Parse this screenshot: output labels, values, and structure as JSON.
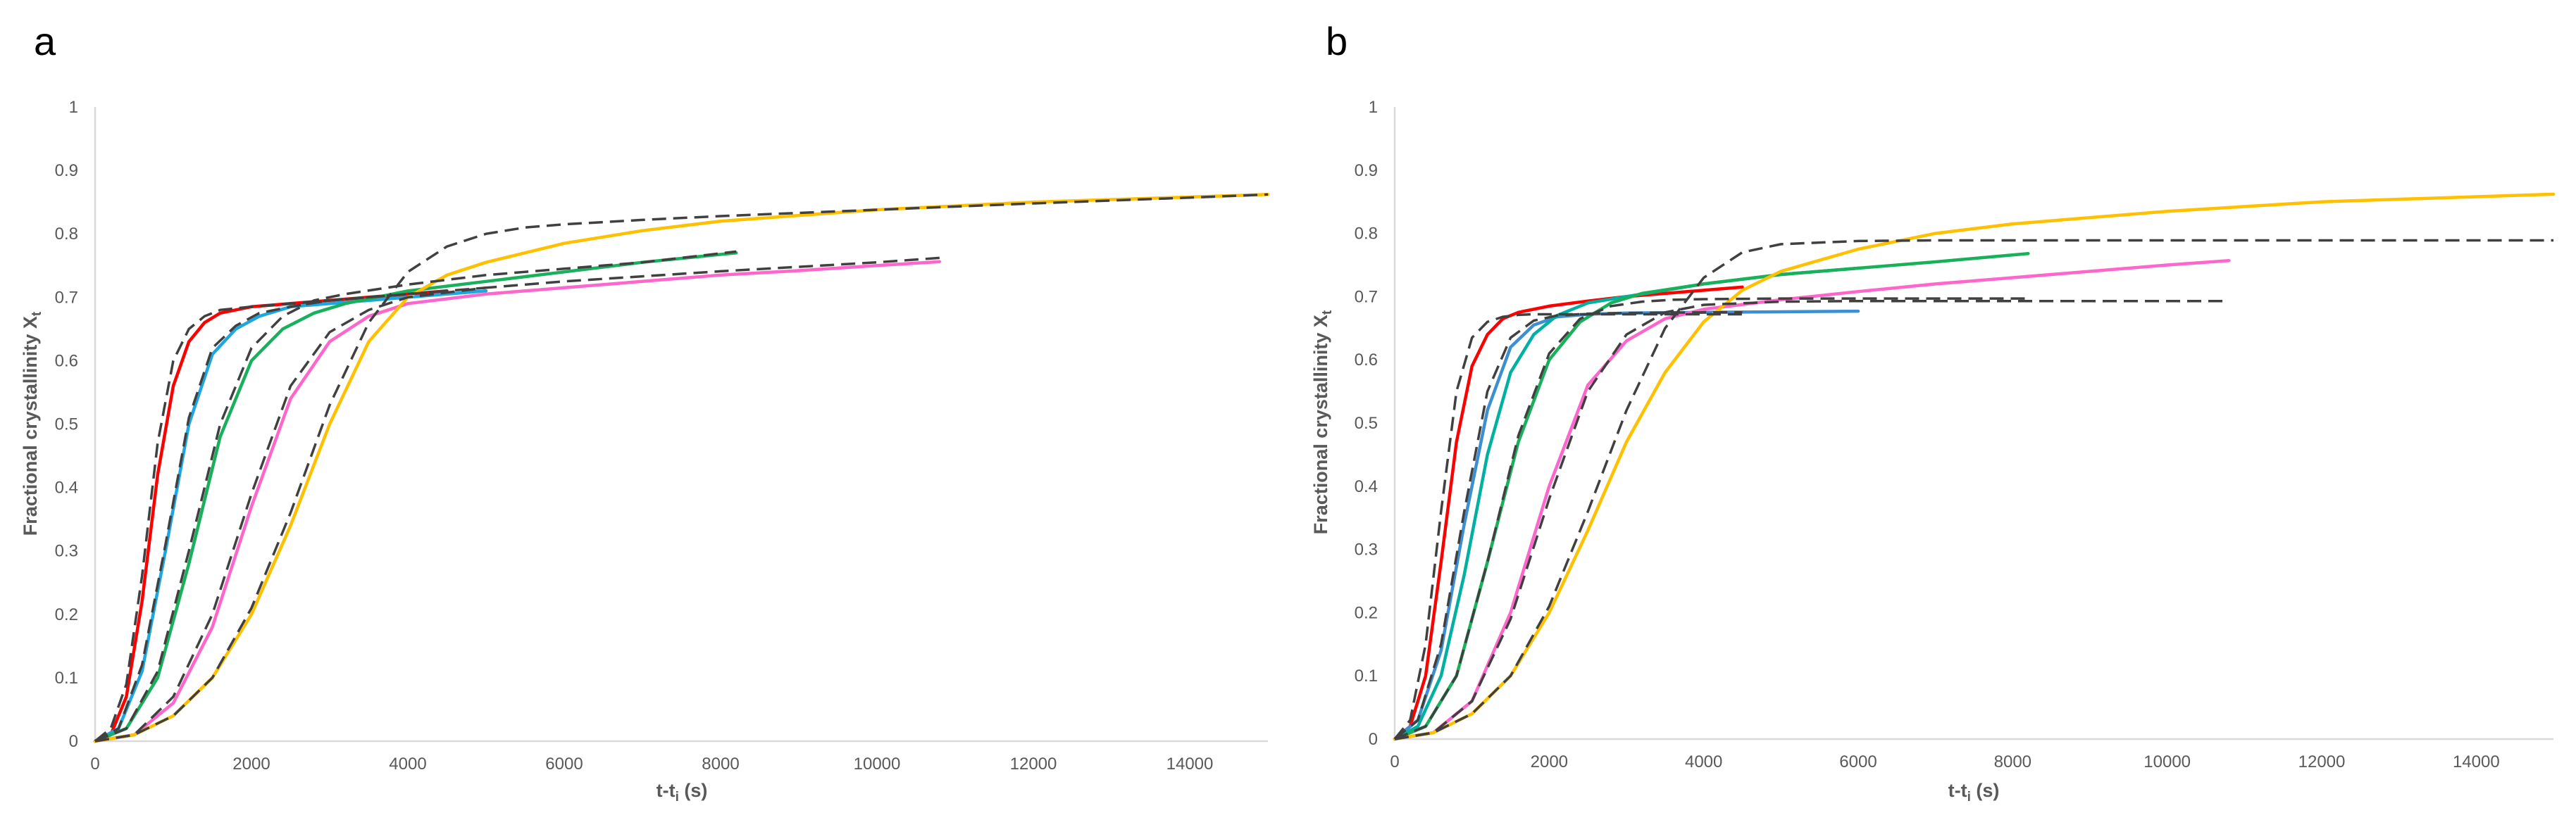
{
  "chart_data": [
    {
      "panel": "a",
      "type": "line",
      "xlabel_main": "t-t",
      "xlabel_sub": "i",
      "xlabel_unit": " (s)",
      "ylabel_main": "Fractional crystallinity X",
      "ylabel_sub": "t",
      "xlim": [
        0,
        15000
      ],
      "ylim": [
        0,
        1
      ],
      "xticks": [
        0,
        2000,
        4000,
        6000,
        8000,
        10000,
        12000,
        14000
      ],
      "yticks": [
        0,
        0.1,
        0.2,
        0.3,
        0.4,
        0.5,
        0.6,
        0.7,
        0.8,
        0.9,
        1
      ],
      "ytick_labels": [
        "0",
        "0.1",
        "0.2",
        "0.3",
        "0.4",
        "0.5",
        "0.6",
        "0.7",
        "0.8",
        "0.9",
        "1"
      ],
      "series": [
        {
          "name": "red",
          "color": "#ff0000",
          "x": [
            0,
            200,
            400,
            600,
            800,
            1000,
            1200,
            1400,
            1600,
            2000,
            2500,
            3000,
            3500,
            4000,
            4500
          ],
          "y": [
            0,
            0.01,
            0.07,
            0.22,
            0.42,
            0.56,
            0.63,
            0.66,
            0.675,
            0.685,
            0.69,
            0.695,
            0.7,
            0.705,
            0.71
          ]
        },
        {
          "name": "blue",
          "color": "#1ca7e0",
          "x": [
            0,
            300,
            600,
            900,
            1200,
            1500,
            1800,
            2100,
            2500,
            3000,
            4000,
            5000
          ],
          "y": [
            0,
            0.02,
            0.11,
            0.3,
            0.5,
            0.61,
            0.65,
            0.67,
            0.685,
            0.69,
            0.7,
            0.71
          ]
        },
        {
          "name": "green",
          "color": "#18b05a",
          "x": [
            0,
            400,
            800,
            1200,
            1600,
            2000,
            2400,
            2800,
            3200,
            4000,
            5000,
            6000,
            7000,
            8200
          ],
          "y": [
            0,
            0.02,
            0.1,
            0.28,
            0.48,
            0.6,
            0.65,
            0.675,
            0.69,
            0.71,
            0.725,
            0.74,
            0.755,
            0.77
          ]
        },
        {
          "name": "pink",
          "color": "#ff66cc",
          "x": [
            0,
            500,
            1000,
            1500,
            2000,
            2500,
            3000,
            3500,
            4000,
            5000,
            6000,
            7000,
            8000,
            9000,
            10000,
            10800
          ],
          "y": [
            0,
            0.01,
            0.06,
            0.18,
            0.37,
            0.54,
            0.63,
            0.67,
            0.69,
            0.705,
            0.715,
            0.725,
            0.735,
            0.742,
            0.75,
            0.756
          ]
        },
        {
          "name": "gold",
          "color": "#ffc000",
          "x": [
            0,
            500,
            1000,
            1500,
            2000,
            2500,
            3000,
            3500,
            4000,
            4500,
            5000,
            6000,
            7000,
            8000,
            10000,
            12000,
            14000,
            15000
          ],
          "y": [
            0,
            0.01,
            0.04,
            0.1,
            0.2,
            0.34,
            0.5,
            0.63,
            0.7,
            0.735,
            0.755,
            0.785,
            0.805,
            0.82,
            0.838,
            0.85,
            0.858,
            0.862
          ]
        }
      ],
      "fits": [
        {
          "name": "red-fit",
          "x": [
            0,
            200,
            400,
            600,
            800,
            1000,
            1200,
            1400,
            1600,
            2000,
            3000,
            4000,
            4500
          ],
          "y": [
            0,
            0.02,
            0.09,
            0.26,
            0.47,
            0.6,
            0.65,
            0.67,
            0.68,
            0.685,
            0.695,
            0.705,
            0.71
          ]
        },
        {
          "name": "blue-fit",
          "x": [
            0,
            300,
            600,
            900,
            1200,
            1500,
            1800,
            2100,
            2500,
            3000,
            4000,
            5000
          ],
          "y": [
            0,
            0.02,
            0.12,
            0.31,
            0.51,
            0.62,
            0.655,
            0.675,
            0.685,
            0.695,
            0.705,
            0.715
          ]
        },
        {
          "name": "green-fit",
          "x": [
            0,
            400,
            800,
            1200,
            1600,
            2000,
            2400,
            2800,
            3200,
            4000,
            5000,
            6000,
            7000,
            8200
          ],
          "y": [
            0,
            0.02,
            0.11,
            0.3,
            0.5,
            0.62,
            0.67,
            0.695,
            0.705,
            0.72,
            0.735,
            0.745,
            0.755,
            0.772
          ]
        },
        {
          "name": "pink-fit",
          "x": [
            0,
            500,
            1000,
            1500,
            2000,
            2500,
            3000,
            3500,
            4000,
            5000,
            6000,
            7000,
            8000,
            9000,
            10000,
            10800
          ],
          "y": [
            0,
            0.01,
            0.07,
            0.2,
            0.39,
            0.56,
            0.645,
            0.68,
            0.7,
            0.715,
            0.725,
            0.733,
            0.741,
            0.748,
            0.755,
            0.762
          ]
        },
        {
          "name": "gold-fit",
          "x": [
            0,
            500,
            1000,
            1500,
            2000,
            2500,
            3000,
            3500,
            4000,
            4500,
            5000,
            5500,
            6000,
            7000,
            8000,
            10000,
            12000,
            14000,
            15000
          ],
          "y": [
            0,
            0.01,
            0.04,
            0.1,
            0.21,
            0.36,
            0.53,
            0.66,
            0.74,
            0.78,
            0.8,
            0.81,
            0.815,
            0.822,
            0.828,
            0.838,
            0.848,
            0.857,
            0.862
          ]
        }
      ]
    },
    {
      "panel": "b",
      "type": "line",
      "xlabel_main": "t-t",
      "xlabel_sub": "i",
      "xlabel_unit": " (s)",
      "ylabel_main": "Fractional crystallinity X",
      "ylabel_sub": "t",
      "xlim": [
        0,
        15000
      ],
      "ylim": [
        0,
        1
      ],
      "xticks": [
        0,
        2000,
        4000,
        6000,
        8000,
        10000,
        12000,
        14000
      ],
      "yticks": [
        0,
        0.1,
        0.2,
        0.3,
        0.4,
        0.5,
        0.6,
        0.7,
        0.8,
        0.9,
        1
      ],
      "ytick_labels": [
        "0",
        "0.1",
        "0.2",
        "0.3",
        "0.4",
        "0.5",
        "0.6",
        "0.7",
        "0.8",
        "0.9",
        "1"
      ],
      "series": [
        {
          "name": "red",
          "color": "#ff0000",
          "x": [
            0,
            200,
            400,
            600,
            800,
            1000,
            1200,
            1400,
            1600,
            2000,
            2500,
            3000,
            3500,
            4000,
            4500
          ],
          "y": [
            0,
            0.02,
            0.1,
            0.28,
            0.47,
            0.59,
            0.64,
            0.665,
            0.675,
            0.685,
            0.693,
            0.7,
            0.705,
            0.71,
            0.715
          ]
        },
        {
          "name": "blue",
          "color": "#3d8fd1",
          "x": [
            0,
            300,
            600,
            900,
            1200,
            1500,
            1800,
            2100,
            2500,
            3000,
            4000,
            5000,
            6000
          ],
          "y": [
            0,
            0.03,
            0.14,
            0.34,
            0.52,
            0.62,
            0.655,
            0.668,
            0.672,
            0.674,
            0.675,
            0.676,
            0.677
          ]
        },
        {
          "name": "teal",
          "color": "#00b0a0",
          "x": [
            0,
            300,
            600,
            900,
            1200,
            1500,
            1800,
            2100,
            2500,
            3000,
            4000,
            5000,
            6000
          ],
          "y": [
            0,
            0.02,
            0.1,
            0.26,
            0.45,
            0.58,
            0.64,
            0.67,
            0.69,
            0.7,
            0.72,
            0.735,
            0.745
          ]
        },
        {
          "name": "green",
          "color": "#18b05a",
          "x": [
            0,
            400,
            800,
            1200,
            1600,
            2000,
            2400,
            2800,
            3200,
            4000,
            5000,
            6000,
            7000,
            8200
          ],
          "y": [
            0,
            0.02,
            0.1,
            0.28,
            0.47,
            0.6,
            0.66,
            0.69,
            0.705,
            0.72,
            0.735,
            0.745,
            0.755,
            0.768
          ]
        },
        {
          "name": "pink",
          "color": "#ff66cc",
          "x": [
            0,
            500,
            1000,
            1500,
            2000,
            2500,
            3000,
            3500,
            4000,
            5000,
            6000,
            7000,
            8000,
            9000,
            10000,
            10800
          ],
          "y": [
            0,
            0.01,
            0.06,
            0.2,
            0.4,
            0.56,
            0.63,
            0.665,
            0.68,
            0.695,
            0.708,
            0.72,
            0.73,
            0.74,
            0.75,
            0.757
          ]
        },
        {
          "name": "gold",
          "color": "#ffc000",
          "x": [
            0,
            500,
            1000,
            1500,
            2000,
            2500,
            3000,
            3500,
            4000,
            4500,
            5000,
            6000,
            7000,
            8000,
            10000,
            12000,
            14000,
            15000
          ],
          "y": [
            0,
            0.01,
            0.04,
            0.1,
            0.2,
            0.33,
            0.47,
            0.58,
            0.66,
            0.71,
            0.74,
            0.775,
            0.8,
            0.815,
            0.835,
            0.85,
            0.858,
            0.862
          ]
        }
      ],
      "fits": [
        {
          "name": "red-fit",
          "x": [
            0,
            200,
            400,
            600,
            800,
            1000,
            1200,
            1400,
            1600,
            1800,
            2000,
            3000,
            4000,
            4500
          ],
          "y": [
            0,
            0.03,
            0.15,
            0.36,
            0.55,
            0.635,
            0.66,
            0.668,
            0.671,
            0.672,
            0.672,
            0.672,
            0.672,
            0.672
          ]
        },
        {
          "name": "blue-fit",
          "x": [
            0,
            300,
            600,
            900,
            1200,
            1500,
            1800,
            2100,
            2500,
            3000,
            4000,
            4500
          ],
          "y": [
            0,
            0.03,
            0.15,
            0.36,
            0.55,
            0.635,
            0.662,
            0.67,
            0.673,
            0.674,
            0.675,
            0.675
          ]
        },
        {
          "name": "green-fit",
          "x": [
            0,
            400,
            800,
            1200,
            1600,
            2000,
            2400,
            2800,
            3200,
            3600,
            4000,
            5000,
            6000,
            7000,
            8200
          ],
          "y": [
            0,
            0.02,
            0.1,
            0.28,
            0.48,
            0.61,
            0.665,
            0.685,
            0.692,
            0.695,
            0.696,
            0.697,
            0.697,
            0.697,
            0.697
          ]
        },
        {
          "name": "pink-fit",
          "x": [
            0,
            500,
            1000,
            1500,
            2000,
            2500,
            3000,
            3500,
            4000,
            5000,
            6000,
            8000,
            10000,
            10800
          ],
          "y": [
            0,
            0.01,
            0.06,
            0.19,
            0.38,
            0.55,
            0.64,
            0.675,
            0.687,
            0.692,
            0.693,
            0.693,
            0.693,
            0.693
          ]
        },
        {
          "name": "gold-fit",
          "x": [
            0,
            500,
            1000,
            1500,
            2000,
            2500,
            3000,
            3500,
            4000,
            4500,
            5000,
            6000,
            7000,
            8000,
            10000,
            12000,
            14000,
            15000
          ],
          "y": [
            0,
            0.01,
            0.04,
            0.1,
            0.21,
            0.36,
            0.52,
            0.65,
            0.73,
            0.77,
            0.783,
            0.788,
            0.789,
            0.789,
            0.789,
            0.789,
            0.789,
            0.789
          ]
        }
      ]
    }
  ]
}
